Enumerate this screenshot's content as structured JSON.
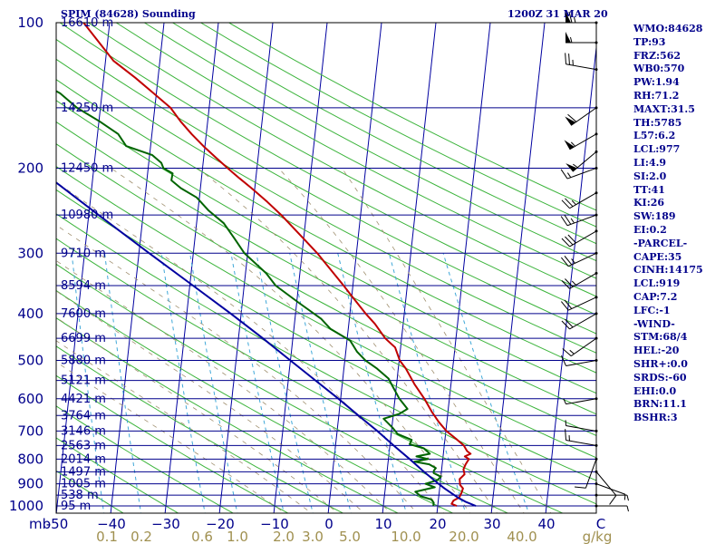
{
  "header": {
    "station": "SPIM (84628) Sounding",
    "time": "1200Z 31 MAR 20"
  },
  "indices": [
    "WMO:84628",
    "TP:93",
    "FRZ:562",
    "WB0:570",
    "PW:1.94",
    "RH:71.2",
    "MAXT:31.5",
    "TH:5785",
    "L57:6.2",
    "LCL:977",
    "LI:4.9",
    "SI:2.0",
    "TT:41",
    "KI:26",
    "SW:189",
    "EI:0.2",
    "-PARCEL-",
    "CAPE:35",
    "CINH:14175",
    "LCL:919",
    "CAP:7.2",
    "LFC:-1",
    "-WIND-",
    "STM:68/4",
    "HEL:-20",
    "SHR+:0.0",
    "SRDS:-60",
    "EHI:0.0",
    "BRN:11.1",
    "BSHR:3"
  ],
  "chart_data": {
    "type": "skew-t",
    "title": "SPIM (84628) Sounding",
    "subtitle": "1200Z 31 MAR 20",
    "xlabel": "C",
    "ylabel": "mb",
    "x_unit": "C",
    "mixing_ratio_unit": "g/kg",
    "y_scale": "log",
    "ylim": [
      1000,
      100
    ],
    "xlim": [
      -50,
      50
    ],
    "pressure_ticks": [
      100,
      200,
      300,
      400,
      500,
      600,
      700,
      800,
      900,
      1000
    ],
    "temperature_ticks": [
      -50,
      -40,
      -30,
      -20,
      -10,
      0,
      10,
      20,
      30,
      40,
      50
    ],
    "temperature_tick_labels": [
      "-50",
      "−40",
      "−30",
      "−20",
      "−10",
      "0",
      "10",
      "20",
      "30",
      "40",
      "C"
    ],
    "mixing_ratio_labels": [
      "0.1",
      "0.2",
      "0.6",
      "1.0",
      "2.0",
      "3.0",
      "5.0",
      "10.0",
      "20.0",
      "40.0",
      "g/kg"
    ],
    "mixing_ratio_values": [
      0.1,
      0.2,
      0.6,
      1.0,
      2.0,
      3.0,
      5.0,
      10.0,
      20.0,
      40.0
    ],
    "height_labels": [
      {
        "p": 100,
        "label": "16610 m"
      },
      {
        "p": 150,
        "label": "14250 m"
      },
      {
        "p": 200,
        "label": "12450 m"
      },
      {
        "p": 250,
        "label": "10980 m"
      },
      {
        "p": 300,
        "label": "9710 m"
      },
      {
        "p": 350,
        "label": "8594 m"
      },
      {
        "p": 400,
        "label": "7600 m"
      },
      {
        "p": 450,
        "label": "6699 m"
      },
      {
        "p": 500,
        "label": "5880 m"
      },
      {
        "p": 550,
        "label": "5121 m"
      },
      {
        "p": 600,
        "label": "4421 m"
      },
      {
        "p": 650,
        "label": "3764 m"
      },
      {
        "p": 700,
        "label": "3146 m"
      },
      {
        "p": 750,
        "label": "2563 m"
      },
      {
        "p": 800,
        "label": "2014 m"
      },
      {
        "p": 850,
        "label": "1497 m"
      },
      {
        "p": 900,
        "label": "1005 m"
      },
      {
        "p": 950,
        "label": "538 m"
      },
      {
        "p": 1000,
        "label": "95 m"
      }
    ],
    "isobar_levels": [
      100,
      150,
      200,
      250,
      300,
      350,
      400,
      450,
      500,
      550,
      600,
      650,
      700,
      750,
      800,
      850,
      900,
      950,
      1000
    ],
    "series": [
      {
        "name": "Temperature",
        "color": "#c00000",
        "points": [
          [
            1000,
            23.5
          ],
          [
            990,
            22.5
          ],
          [
            975,
            22.8
          ],
          [
            960,
            23.8
          ],
          [
            940,
            24.1
          ],
          [
            920,
            24.3
          ],
          [
            905,
            23.7
          ],
          [
            880,
            23.5
          ],
          [
            860,
            24.3
          ],
          [
            840,
            24.0
          ],
          [
            820,
            24.3
          ],
          [
            800,
            24.8
          ],
          [
            790,
            24.0
          ],
          [
            780,
            25.0
          ],
          [
            770,
            24.3
          ],
          [
            750,
            23.6
          ],
          [
            730,
            22.3
          ],
          [
            700,
            20.1
          ],
          [
            670,
            18.5
          ],
          [
            640,
            17.1
          ],
          [
            600,
            15.4
          ],
          [
            560,
            13.3
          ],
          [
            520,
            11.4
          ],
          [
            500,
            10.1
          ],
          [
            470,
            9.0
          ],
          [
            450,
            7.0
          ],
          [
            420,
            4.8
          ],
          [
            400,
            2.9
          ],
          [
            370,
            0.2
          ],
          [
            350,
            -1.7
          ],
          [
            320,
            -4.9
          ],
          [
            300,
            -7.2
          ],
          [
            280,
            -10.0
          ],
          [
            260,
            -13.0
          ],
          [
            250,
            -14.6
          ],
          [
            235,
            -17.4
          ],
          [
            220,
            -20.6
          ],
          [
            210,
            -23.0
          ],
          [
            200,
            -25.4
          ],
          [
            190,
            -27.8
          ],
          [
            180,
            -30.3
          ],
          [
            170,
            -32.7
          ],
          [
            160,
            -35.0
          ],
          [
            150,
            -37.1
          ],
          [
            140,
            -40.5
          ],
          [
            130,
            -44.2
          ],
          [
            120,
            -48.5
          ],
          [
            110,
            -51.5
          ],
          [
            100,
            -54.8
          ]
        ]
      },
      {
        "name": "Dewpoint",
        "color": "#006400",
        "points": [
          [
            1000,
            19.2
          ],
          [
            985,
            19.2
          ],
          [
            970,
            18.7
          ],
          [
            955,
            16.7
          ],
          [
            935,
            15.6
          ],
          [
            915,
            19.1
          ],
          [
            900,
            17.3
          ],
          [
            885,
            19.4
          ],
          [
            870,
            20.0
          ],
          [
            855,
            18.6
          ],
          [
            845,
            18.6
          ],
          [
            835,
            18.9
          ],
          [
            820,
            17.6
          ],
          [
            810,
            14.8
          ],
          [
            800,
            17.3
          ],
          [
            790,
            15.1
          ],
          [
            780,
            17.5
          ],
          [
            760,
            16.3
          ],
          [
            745,
            13.6
          ],
          [
            730,
            13.9
          ],
          [
            710,
            11.2
          ],
          [
            690,
            10.2
          ],
          [
            660,
            8.3
          ],
          [
            645,
            11.1
          ],
          [
            630,
            12.5
          ],
          [
            600,
            10.8
          ],
          [
            570,
            9.5
          ],
          [
            545,
            8.4
          ],
          [
            520,
            6.1
          ],
          [
            500,
            3.8
          ],
          [
            480,
            2.1
          ],
          [
            455,
            0.6
          ],
          [
            430,
            -3.3
          ],
          [
            410,
            -5.2
          ],
          [
            380,
            -9.6
          ],
          [
            350,
            -14.2
          ],
          [
            330,
            -16.2
          ],
          [
            300,
            -20.6
          ],
          [
            280,
            -22.7
          ],
          [
            260,
            -25.0
          ],
          [
            245,
            -28.0
          ],
          [
            230,
            -30.5
          ],
          [
            220,
            -33.6
          ],
          [
            212,
            -35.5
          ],
          [
            205,
            -35.4
          ],
          [
            200,
            -37.2
          ],
          [
            195,
            -37.7
          ],
          [
            188,
            -39.5
          ],
          [
            180,
            -44.5
          ],
          [
            170,
            -46.2
          ],
          [
            160,
            -49.9
          ],
          [
            150,
            -54.3
          ],
          [
            140,
            -57.7
          ],
          [
            130,
            -63.2
          ],
          [
            120,
            -66.2
          ],
          [
            110,
            -66.8
          ],
          [
            100,
            -69.8
          ]
        ]
      },
      {
        "name": "Parcel",
        "color": "#0000a0",
        "points": [
          [
            1000,
            27.0
          ],
          [
            980,
            25.0
          ],
          [
            960,
            23.5
          ],
          [
            940,
            22.2
          ],
          [
            920,
            20.9
          ],
          [
            900,
            19.7
          ],
          [
            850,
            16.8
          ],
          [
            800,
            13.9
          ],
          [
            750,
            10.7
          ],
          [
            700,
            7.4
          ],
          [
            650,
            3.6
          ],
          [
            600,
            -0.4
          ],
          [
            550,
            -5.0
          ],
          [
            500,
            -10.0
          ],
          [
            450,
            -15.5
          ],
          [
            400,
            -21.9
          ],
          [
            350,
            -29.4
          ],
          [
            300,
            -38.1
          ],
          [
            250,
            -48.2
          ],
          [
            200,
            -60.4
          ],
          [
            150,
            -75.1
          ],
          [
            100,
            -93.0
          ]
        ]
      }
    ],
    "wind_barbs": [
      {
        "p": 100,
        "dir": 270,
        "spd": 65
      },
      {
        "p": 110,
        "dir": 270,
        "spd": 55
      },
      {
        "p": 125,
        "dir": 280,
        "spd": 25
      },
      {
        "p": 150,
        "dir": 235,
        "spd": 60
      },
      {
        "p": 170,
        "dir": 240,
        "spd": 55
      },
      {
        "p": 185,
        "dir": 230,
        "spd": 55
      },
      {
        "p": 200,
        "dir": 250,
        "spd": 15
      },
      {
        "p": 225,
        "dir": 240,
        "spd": 25
      },
      {
        "p": 250,
        "dir": 250,
        "spd": 25
      },
      {
        "p": 270,
        "dir": 240,
        "spd": 30
      },
      {
        "p": 300,
        "dir": 245,
        "spd": 25
      },
      {
        "p": 330,
        "dir": 240,
        "spd": 25
      },
      {
        "p": 370,
        "dir": 245,
        "spd": 20
      },
      {
        "p": 400,
        "dir": 240,
        "spd": 20
      },
      {
        "p": 450,
        "dir": 235,
        "spd": 15
      },
      {
        "p": 500,
        "dir": 260,
        "spd": 10
      },
      {
        "p": 600,
        "dir": 260,
        "spd": 5
      },
      {
        "p": 700,
        "dir": 280,
        "spd": 5
      },
      {
        "p": 750,
        "dir": 280,
        "spd": 15
      },
      {
        "p": 800,
        "dir": 200,
        "spd": 10
      },
      {
        "p": 850,
        "dir": 140,
        "spd": 10
      },
      {
        "p": 900,
        "dir": 110,
        "spd": 5
      },
      {
        "p": 950,
        "dir": 90,
        "spd": 5
      },
      {
        "p": 1000,
        "dir": 90,
        "spd": 5
      }
    ],
    "grid": true,
    "legend": "none"
  }
}
